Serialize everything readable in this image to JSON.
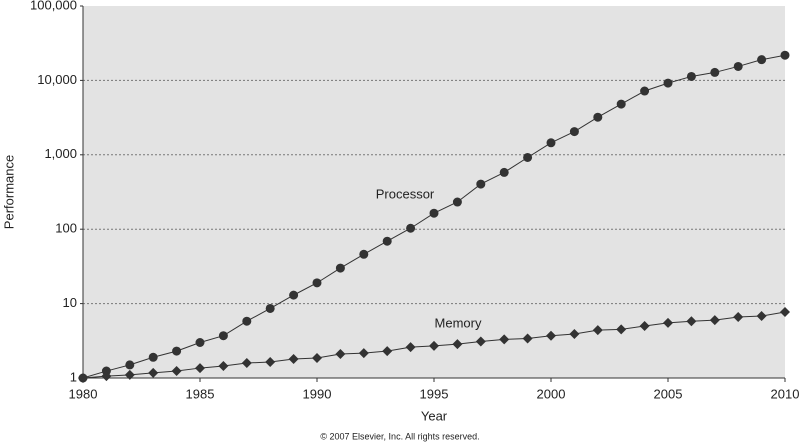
{
  "chart_data": {
    "type": "line",
    "x_label": "Year",
    "y_label": "Performance",
    "copyright": "© 2007 Elsevier, Inc. All rights reserved.",
    "log_scale_y": true,
    "grid": true,
    "x": [
      1980,
      1981,
      1982,
      1983,
      1984,
      1985,
      1986,
      1987,
      1988,
      1989,
      1990,
      1991,
      1992,
      1993,
      1994,
      1995,
      1996,
      1997,
      1998,
      1999,
      2000,
      2001,
      2002,
      2003,
      2004,
      2005,
      2006,
      2007,
      2008,
      2009,
      2010
    ],
    "series": [
      {
        "name": "Processor",
        "color": "#333333",
        "marker": "circle",
        "values": [
          1,
          1.24,
          1.5,
          1.9,
          2.3,
          3.0,
          3.7,
          5.8,
          8.6,
          13,
          19,
          30,
          46,
          69,
          103,
          164,
          232,
          404,
          580,
          920,
          1450,
          2050,
          3200,
          4800,
          7200,
          9200,
          11300,
          12800,
          15400,
          19000,
          21800
        ]
      },
      {
        "name": "Memory",
        "color": "#333333",
        "marker": "diamond",
        "values": [
          1,
          1.06,
          1.1,
          1.17,
          1.24,
          1.36,
          1.45,
          1.59,
          1.64,
          1.8,
          1.86,
          2.1,
          2.16,
          2.3,
          2.6,
          2.7,
          2.85,
          3.1,
          3.3,
          3.4,
          3.7,
          3.9,
          4.4,
          4.5,
          5.0,
          5.5,
          5.8,
          6.0,
          6.6,
          6.8,
          7.7
        ]
      }
    ],
    "xlim": [
      1980,
      2010
    ],
    "xticks": [
      1980,
      1985,
      1990,
      1995,
      2000,
      2005,
      2010
    ],
    "ylim": [
      1,
      100000
    ],
    "yticks": [
      1,
      10,
      100,
      {
        "value": 1000,
        "label": "1,000"
      },
      {
        "value": 10000,
        "label": "10,000"
      },
      {
        "value": 100000,
        "label": "100,000"
      }
    ]
  }
}
